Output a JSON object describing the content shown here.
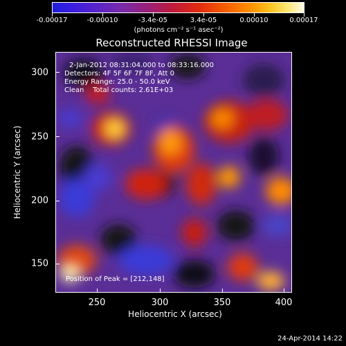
{
  "colorbar": {
    "labels": [
      "-0.00017",
      "-0.00010",
      "-3.4e-05",
      "3.4e-05",
      "0.00010",
      "0.00017"
    ],
    "units": "(photons cm⁻² s⁻¹ asec⁻²)"
  },
  "title": "Reconstructed RHESSI Image",
  "info": {
    "time_range": "2-Jan-2012 08:31:04.000 to 08:33:16.000",
    "detectors": "Detectors: 4F 5F 6F 7F 8F, Att 0",
    "energy_range": "Energy Range: 25.0 - 50.0 keV",
    "method_counts": "Clean    Total counts: 2.61E+03",
    "peak": "Position of Peak = [212,148]"
  },
  "axes": {
    "xlabel": "Heliocentric X (arcsec)",
    "ylabel": "Heliocentric Y (arcsec)",
    "xticks": [
      "250",
      "300",
      "350",
      "400"
    ],
    "yticks": [
      "300",
      "250",
      "200",
      "150"
    ]
  },
  "date_stamp": "24-Apr-2014 14:22",
  "colors": {
    "background": "#000000",
    "low": "#1e1edc",
    "mid": "#c01a3a",
    "high": "#fffbe6"
  }
}
